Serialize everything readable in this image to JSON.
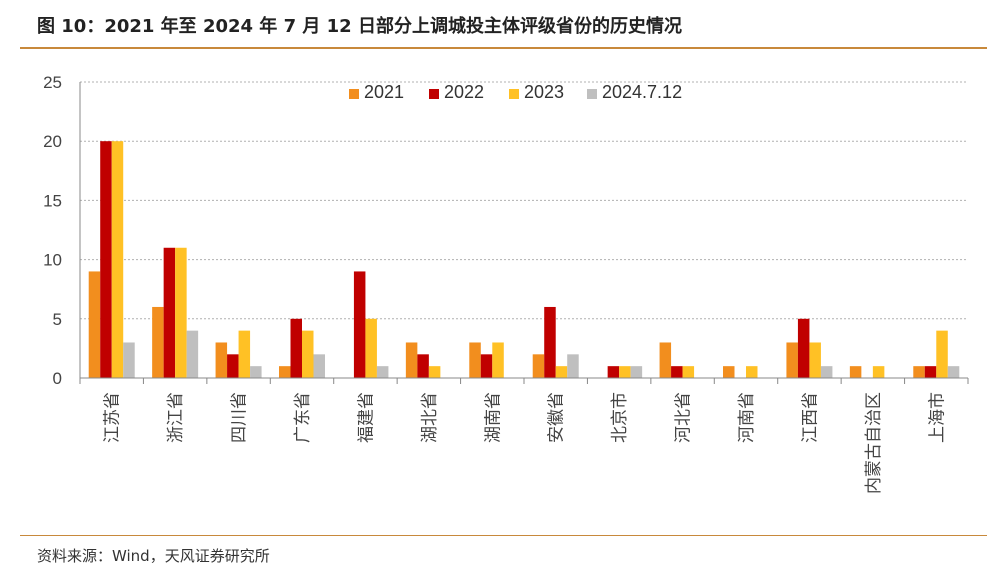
{
  "title": "图 10：2021 年至 2024 年 7 月 12 日部分上调城投主体评级省份的历史情况",
  "source": "资料来源：Wind，天风证券研究所",
  "colors": {
    "rule": "#c8893b",
    "series": [
      "#f28e1e",
      "#c00000",
      "#ffc125",
      "#bfbfbf"
    ]
  },
  "chart_data": {
    "type": "bar",
    "ylim": [
      0,
      25
    ],
    "yticks": [
      0,
      5,
      10,
      15,
      20,
      25
    ],
    "grid": true,
    "legend_position": "top-center",
    "categories": [
      "江苏省",
      "浙江省",
      "四川省",
      "广东省",
      "福建省",
      "湖北省",
      "湖南省",
      "安徽省",
      "北京市",
      "河北省",
      "河南省",
      "江西省",
      "内蒙古自治区",
      "上海市"
    ],
    "series": [
      {
        "name": "2021",
        "values": [
          9,
          6,
          3,
          1,
          0,
          3,
          3,
          2,
          0,
          3,
          1,
          3,
          1,
          1
        ]
      },
      {
        "name": "2022",
        "values": [
          20,
          11,
          2,
          5,
          9,
          2,
          2,
          6,
          1,
          1,
          0,
          5,
          0,
          1
        ]
      },
      {
        "name": "2023",
        "values": [
          20,
          11,
          4,
          4,
          5,
          1,
          3,
          1,
          1,
          1,
          1,
          3,
          1,
          4
        ]
      },
      {
        "name": "2024.7.12",
        "values": [
          3,
          4,
          1,
          2,
          1,
          0,
          0,
          2,
          1,
          0,
          0,
          1,
          0,
          1
        ]
      }
    ]
  }
}
